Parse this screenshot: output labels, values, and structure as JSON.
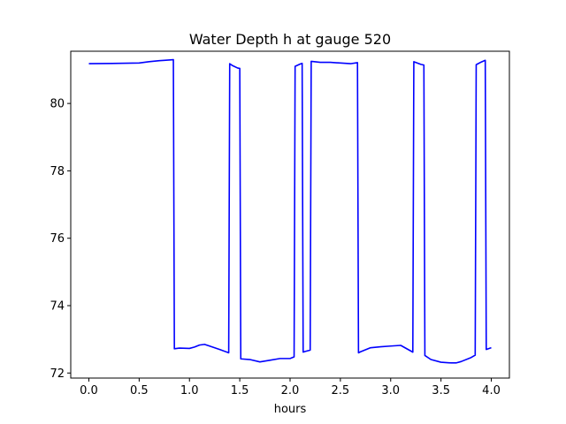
{
  "chart_data": {
    "type": "line",
    "title": "Water Depth h at gauge 520",
    "xlabel": "hours",
    "ylabel": "",
    "xlim": [
      -0.18,
      4.18
    ],
    "ylim": [
      71.85,
      81.55
    ],
    "xticks": [
      0.0,
      0.5,
      1.0,
      1.5,
      2.0,
      2.5,
      3.0,
      3.5,
      4.0
    ],
    "xtick_labels": [
      "0.0",
      "0.5",
      "1.0",
      "1.5",
      "2.0",
      "2.5",
      "3.0",
      "3.5",
      "4.0"
    ],
    "yticks": [
      72,
      74,
      76,
      78,
      80
    ],
    "ytick_labels": [
      "72",
      "74",
      "76",
      "78",
      "80"
    ],
    "grid": false,
    "series": [
      {
        "color": "#0000ff",
        "x": [
          0.0,
          0.3,
          0.5,
          0.55,
          0.6,
          0.7,
          0.75,
          0.84,
          0.85,
          0.9,
          1.0,
          1.05,
          1.1,
          1.15,
          1.2,
          1.3,
          1.39,
          1.4,
          1.43,
          1.48,
          1.5,
          1.51,
          1.6,
          1.7,
          1.8,
          1.9,
          2.0,
          2.04,
          2.05,
          2.1,
          2.12,
          2.13,
          2.15,
          2.2,
          2.21,
          2.3,
          2.4,
          2.5,
          2.6,
          2.67,
          2.68,
          2.7,
          2.8,
          2.9,
          3.0,
          3.1,
          3.22,
          3.23,
          3.3,
          3.33,
          3.34,
          3.4,
          3.5,
          3.6,
          3.65,
          3.7,
          3.8,
          3.84,
          3.85,
          3.9,
          3.94,
          3.95,
          4.0
        ],
        "y": [
          81.18,
          81.19,
          81.2,
          81.22,
          81.24,
          81.27,
          81.28,
          81.3,
          72.72,
          72.74,
          72.73,
          72.77,
          72.83,
          72.85,
          72.8,
          72.7,
          72.6,
          81.18,
          81.12,
          81.05,
          81.04,
          72.42,
          72.4,
          72.33,
          72.38,
          72.43,
          72.43,
          72.48,
          81.1,
          81.17,
          81.19,
          72.62,
          72.64,
          72.68,
          81.25,
          81.22,
          81.22,
          81.2,
          81.18,
          81.21,
          72.6,
          72.63,
          72.75,
          72.78,
          72.8,
          72.82,
          72.62,
          81.24,
          81.16,
          81.14,
          72.52,
          72.4,
          72.32,
          72.3,
          72.3,
          72.34,
          72.46,
          72.53,
          81.15,
          81.23,
          81.28,
          72.7,
          72.75
        ]
      }
    ]
  }
}
